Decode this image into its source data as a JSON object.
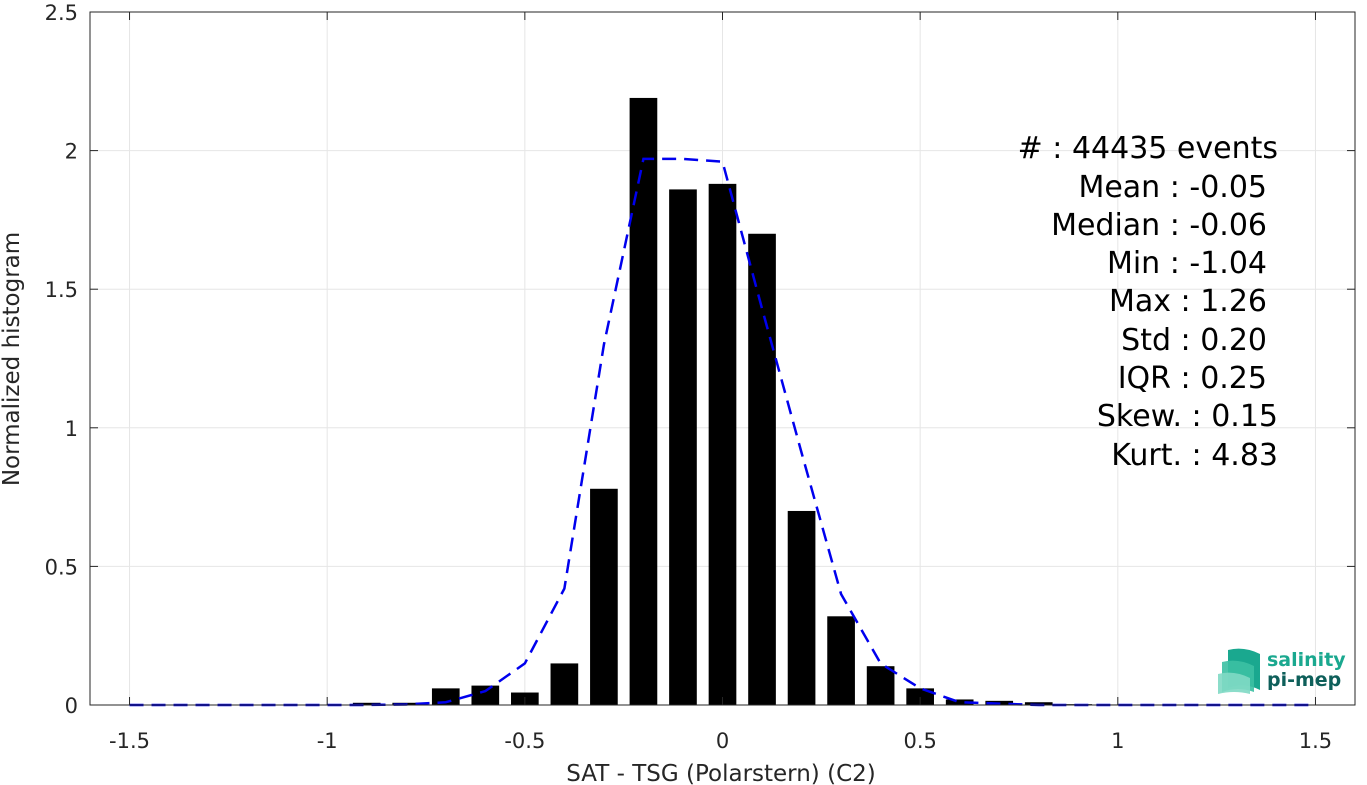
{
  "chart_data": {
    "type": "bar",
    "xlabel": "SAT - TSG (Polarstern) (C2)",
    "ylabel": "Normalized histogram",
    "xlim": [
      -1.6,
      1.6
    ],
    "ylim": [
      0,
      2.5
    ],
    "x_ticks": [
      -1.5,
      -1,
      -0.5,
      0,
      0.5,
      1,
      1.5
    ],
    "x_tick_labels": [
      "-1.5",
      "-1",
      "-0.5",
      "0",
      "0.5",
      "1",
      "1.5"
    ],
    "y_ticks": [
      0,
      0.5,
      1,
      1.5,
      2,
      2.5
    ],
    "y_tick_labels": [
      "0",
      "0.5",
      "1",
      "1.5",
      "2",
      "2.5"
    ],
    "grid": true,
    "bar_width": 0.07,
    "series": [
      {
        "type": "bar",
        "color": "#000000",
        "x": [
          -1.5,
          -1.4,
          -1.3,
          -1.2,
          -1.1,
          -1.0,
          -0.9,
          -0.8,
          -0.7,
          -0.6,
          -0.5,
          -0.4,
          -0.3,
          -0.2,
          -0.1,
          0.0,
          0.1,
          0.2,
          0.3,
          0.4,
          0.5,
          0.6,
          0.7,
          0.8,
          0.9,
          1.0,
          1.1,
          1.2,
          1.3,
          1.4,
          1.5
        ],
        "values": [
          0,
          0,
          0,
          0,
          0,
          0,
          0.008,
          0.008,
          0.06,
          0.07,
          0.045,
          0.15,
          0.78,
          2.19,
          1.86,
          1.88,
          1.7,
          0.7,
          0.32,
          0.14,
          0.06,
          0.02,
          0.015,
          0.01,
          0.003,
          0.002,
          0.001,
          0,
          0,
          0,
          0
        ]
      },
      {
        "type": "line",
        "style": "dashed",
        "color": "#0000ee",
        "x": [
          -1.5,
          -1.4,
          -1.3,
          -1.2,
          -1.1,
          -1.0,
          -0.9,
          -0.8,
          -0.7,
          -0.6,
          -0.5,
          -0.4,
          -0.3,
          -0.2,
          -0.1,
          0.0,
          0.1,
          0.2,
          0.3,
          0.4,
          0.5,
          0.6,
          0.7,
          0.8,
          0.9,
          1.0,
          1.1,
          1.2,
          1.3,
          1.4,
          1.5
        ],
        "values": [
          0,
          0,
          0,
          0,
          0,
          0,
          0,
          0.002,
          0.01,
          0.05,
          0.15,
          0.42,
          1.3,
          1.97,
          1.97,
          1.96,
          1.43,
          0.91,
          0.4,
          0.15,
          0.06,
          0.01,
          0.005,
          0,
          0,
          0,
          0,
          0,
          0,
          0,
          0
        ]
      }
    ]
  },
  "stats": {
    "lines": [
      "#  : 44435 events",
      "Mean : -0.05",
      "Median : -0.06",
      "Min : -1.04",
      "Max : 1.26",
      "Std : 0.20",
      "IQR : 0.25",
      "Skew. : 0.15",
      "Kurt. : 4.83"
    ]
  },
  "logo": {
    "line1": "salinity",
    "line2": "pi-mep",
    "color1": "#1aa88f",
    "color2": "#0e5f5a"
  },
  "colors": {
    "grid": "#e6e6e6",
    "axis": "#262626"
  }
}
